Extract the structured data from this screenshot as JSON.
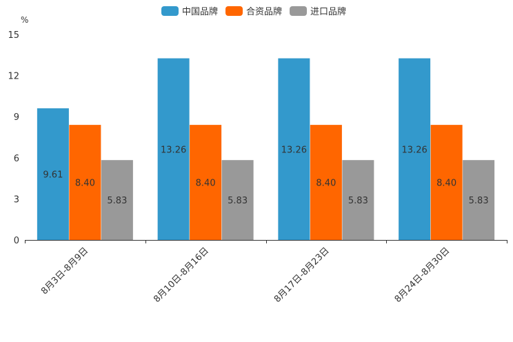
{
  "chart_data": {
    "type": "bar",
    "unit": "%",
    "categories": [
      "8月3日-8月9日",
      "8月10日-8月16日",
      "8月17日-8月23日",
      "8月24日-8月30日"
    ],
    "series": [
      {
        "name": "中国品牌",
        "color": "#3399cc",
        "values": [
          9.61,
          13.26,
          13.26,
          13.26
        ],
        "labels": [
          "9.61",
          "13.26",
          "13.26",
          "13.26"
        ]
      },
      {
        "name": "合资品牌",
        "color": "#ff6600",
        "values": [
          8.4,
          8.4,
          8.4,
          8.4
        ],
        "labels": [
          "8.40",
          "8.40",
          "8.40",
          "8.40"
        ]
      },
      {
        "name": "进口品牌",
        "color": "#999999",
        "values": [
          5.83,
          5.83,
          5.83,
          5.83
        ],
        "labels": [
          "5.83",
          "5.83",
          "5.83",
          "5.83"
        ]
      }
    ],
    "yticks": [
      "0",
      "3",
      "6",
      "9",
      "12",
      "15"
    ],
    "ylim": [
      0,
      15
    ],
    "legend_position": "top"
  }
}
